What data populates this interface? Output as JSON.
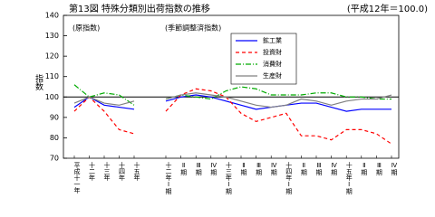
{
  "chart_data": {
    "type": "line",
    "title": "第13図 特殊分類別出荷指数の推移",
    "note": "(平成12年＝100.0)",
    "y_label": "指数",
    "ylim": [
      70,
      140
    ],
    "yticks": [
      70,
      80,
      90,
      100,
      110,
      120,
      130,
      140
    ],
    "panels": [
      {
        "label": "(原指数)",
        "categories": [
          "平成十一年",
          "十二年",
          "十三年",
          "十四年",
          "十五年"
        ]
      },
      {
        "label": "(季節調整済指数)",
        "categories": [
          "十二年Ⅰ期",
          "Ⅱ期",
          "Ⅲ期",
          "Ⅳ期",
          "十三年Ⅰ期",
          "Ⅱ期",
          "Ⅲ期",
          "Ⅳ期",
          "十四年Ⅰ期",
          "Ⅱ期",
          "Ⅲ期",
          "Ⅳ期",
          "十五年Ⅰ期",
          "Ⅱ期",
          "Ⅲ期",
          "Ⅳ期"
        ]
      }
    ],
    "series": [
      {
        "name": "鉱工業",
        "color": "#0000ff",
        "dash": "none",
        "values": [
          [
            95,
            100,
            96,
            95,
            94
          ],
          [
            98,
            100,
            101,
            100,
            98,
            96,
            94,
            95,
            96,
            97,
            97,
            95,
            93,
            94,
            94,
            94
          ]
        ]
      },
      {
        "name": "投資財",
        "color": "#ff0000",
        "dash": "4 3",
        "values": [
          [
            93,
            100,
            93,
            84,
            82
          ],
          [
            93,
            101,
            104,
            103,
            100,
            92,
            88,
            90,
            92,
            81,
            81,
            79,
            84,
            84,
            82,
            77
          ]
        ]
      },
      {
        "name": "消費財",
        "color": "#00aa00",
        "dash": "6 2 1 2",
        "values": [
          [
            106,
            100,
            102,
            101,
            96
          ],
          [
            99,
            101,
            100,
            99,
            103,
            105,
            104,
            101,
            101,
            101,
            102,
            102,
            100,
            100,
            99,
            99
          ]
        ]
      },
      {
        "name": "生産財",
        "color": "#808080",
        "dash": "none",
        "values": [
          [
            97,
            100,
            97,
            96,
            98
          ],
          [
            99,
            101,
            102,
            101,
            100,
            98,
            96,
            95,
            96,
            99,
            98,
            96,
            98,
            99,
            99,
            101
          ]
        ]
      }
    ]
  }
}
